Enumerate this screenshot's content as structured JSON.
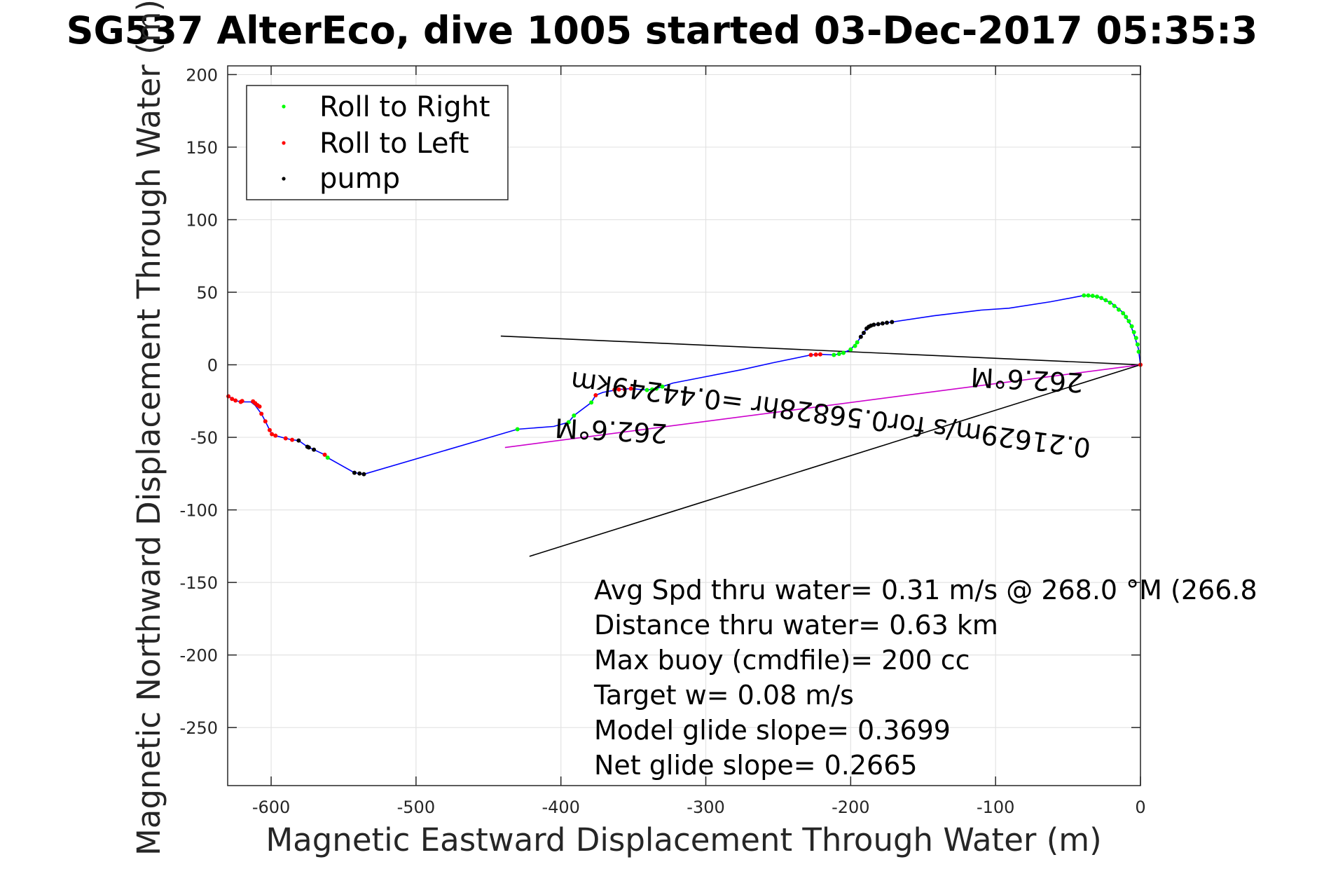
{
  "chart_data": {
    "type": "line",
    "title": "SG537 AlterEco, dive 1005 started 03-Dec-2017 05:35:3",
    "xlabel": "Magnetic Eastward Displacement Through Water (m)",
    "ylabel": "Magnetic Northward Displacement Through Water (m)",
    "xlim": [
      -630,
      0
    ],
    "ylim": [
      -290,
      206
    ],
    "xticks": [
      -600,
      -500,
      -400,
      -300,
      -200,
      -100,
      0
    ],
    "yticks": [
      200,
      150,
      100,
      50,
      0,
      -50,
      -100,
      -150,
      -200,
      -250
    ],
    "xtick_labels": [
      "-600",
      "-500",
      "-400",
      "-300",
      "-200",
      "-100",
      "0"
    ],
    "ytick_labels": [
      "200",
      "150",
      "100",
      "50",
      "0",
      "-50",
      "-100",
      "-150",
      "-200",
      "-250"
    ],
    "grid": true,
    "legend": {
      "location": "top-left",
      "entries": [
        {
          "label": "Roll to Right",
          "color": "#00ff00"
        },
        {
          "label": "Roll to Left",
          "color": "#ff0000"
        },
        {
          "label": "pump",
          "color": "#000000"
        }
      ]
    },
    "series": [
      {
        "name": "track",
        "color": "#0000ff",
        "x": [
          -629.5,
          -624.6,
          -621,
          -614,
          -611,
          -606.7,
          -604,
          -601,
          -599.5,
          -597,
          -590,
          -585.5,
          -581,
          -575,
          -570.5,
          -563,
          -561,
          -542.5,
          -539,
          -536,
          -430,
          -405,
          -394.7,
          -391,
          -379,
          -376,
          -371,
          -360,
          -351.7,
          -340.6,
          -334,
          -330,
          -322.7,
          -300,
          -274.4,
          -253.6,
          -227.5,
          -221,
          -211.6,
          -205,
          -200,
          -195.5,
          -193,
          -189,
          -186,
          -181,
          -171.5,
          -142.5,
          -110,
          -90.8,
          -61.8,
          -39,
          -29.5,
          -20,
          -12,
          -7,
          -3.9,
          -1.4,
          0
        ],
        "y": [
          -21.7,
          -24.6,
          -25.6,
          -25.6,
          -28,
          -33.8,
          -39,
          -45,
          -47.8,
          -48.8,
          -50.7,
          -51.7,
          -52.2,
          -56.5,
          -58.5,
          -62,
          -64,
          -74.4,
          -74.9,
          -75.4,
          -44.4,
          -42.5,
          -39.6,
          -35,
          -26,
          -21,
          -19,
          -17,
          -16.4,
          -17.4,
          -16.4,
          -15,
          -12.6,
          -8.2,
          -3.2,
          1.4,
          6.8,
          7.2,
          6.8,
          8.2,
          10.6,
          15.5,
          19.3,
          25,
          27,
          28,
          29.5,
          33.8,
          37.7,
          39,
          43.5,
          47.8,
          47,
          42.5,
          36,
          28,
          19.3,
          11,
          0
        ]
      },
      {
        "name": "Roll to Right",
        "color": "#00ff00",
        "x": [
          -561,
          -430,
          -394.7,
          -391,
          -379,
          -340.6,
          -337,
          -334,
          -330,
          -211.6,
          -208,
          -205,
          -200,
          -197,
          -195.5,
          -39,
          -36,
          -33,
          -30,
          -27,
          -24,
          -21,
          -18,
          -15,
          -12,
          -10,
          -8,
          -6,
          -4.5,
          -3,
          -2,
          -1.2
        ],
        "y": [
          -64,
          -44.4,
          -39.6,
          -35,
          -26,
          -17.4,
          -17,
          -16.4,
          -15,
          6.8,
          7.5,
          8.2,
          10.6,
          13,
          15.5,
          47.8,
          47.8,
          47.5,
          47,
          46,
          44.5,
          42.8,
          40.5,
          38,
          35.5,
          33,
          30,
          26.5,
          22.5,
          18.5,
          14,
          9
        ]
      },
      {
        "name": "Roll to Left",
        "color": "#ff0000",
        "x": [
          -629.5,
          -627,
          -624.6,
          -620,
          -621,
          -612.5,
          -611,
          -609.5,
          -608,
          -606.7,
          -604,
          -601,
          -599.5,
          -597,
          -590,
          -585.5,
          -563,
          -376,
          -363,
          -360,
          -356,
          -351.7,
          -227.5,
          -224,
          -221,
          0
        ],
        "y": [
          -21.7,
          -23.5,
          -24.6,
          -25,
          -25.6,
          -25.2,
          -26.5,
          -27.8,
          -28.8,
          -33.8,
          -39,
          -45,
          -47.8,
          -48.8,
          -50.7,
          -51.7,
          -62,
          -21,
          -17.2,
          -17,
          -16.8,
          -16.4,
          6.8,
          7,
          7.2,
          0
        ]
      },
      {
        "name": "pump",
        "color": "#000000",
        "x": [
          -581,
          -575,
          -574,
          -570.5,
          -542.5,
          -539,
          -536,
          -193,
          -191,
          -189,
          -187.5,
          -186,
          -184,
          -181,
          -178,
          -175,
          -171.5
        ],
        "y": [
          -52.2,
          -56.5,
          -57,
          -58.5,
          -74.4,
          -74.9,
          -75.4,
          19.3,
          22,
          25,
          26.2,
          27,
          27.6,
          28,
          28.5,
          29,
          29.5
        ]
      }
    ],
    "lines": [
      {
        "name": "heading-line-upper",
        "color": "#000000",
        "x": [
          -441.5,
          0
        ],
        "y": [
          19.8,
          0
        ]
      },
      {
        "name": "net-displacement-line",
        "color": "#cc00cc",
        "x": [
          -438.6,
          0
        ],
        "y": [
          -57,
          0
        ]
      },
      {
        "name": "heading-line-lower",
        "color": "#000000",
        "x": [
          -421.7,
          0
        ],
        "y": [
          -132,
          0
        ]
      }
    ],
    "annotations": [
      {
        "name": "heading-label-right",
        "text": "262.6°M",
        "x": -78,
        "y": -4,
        "rotation_deg": 183
      },
      {
        "name": "heading-label-left",
        "text": "262.6°M",
        "x": -365,
        "y": -39,
        "rotation_deg": 183
      },
      {
        "name": "current-label",
        "text": "0.21629m/s for0.56828hr =0.44249km",
        "x": -213,
        "y": -28,
        "rotation_deg": 187.4
      }
    ],
    "stats": [
      "Avg Spd thru water=  0.31 m/s @ 268.0 °M (266.8",
      "Distance thru water=  0.63 km",
      "Max buoy (cmdfile)= 200 cc",
      "Target w= 0.08 m/s",
      "Model glide slope= 0.3699",
      "Net glide slope= 0.2665"
    ]
  }
}
